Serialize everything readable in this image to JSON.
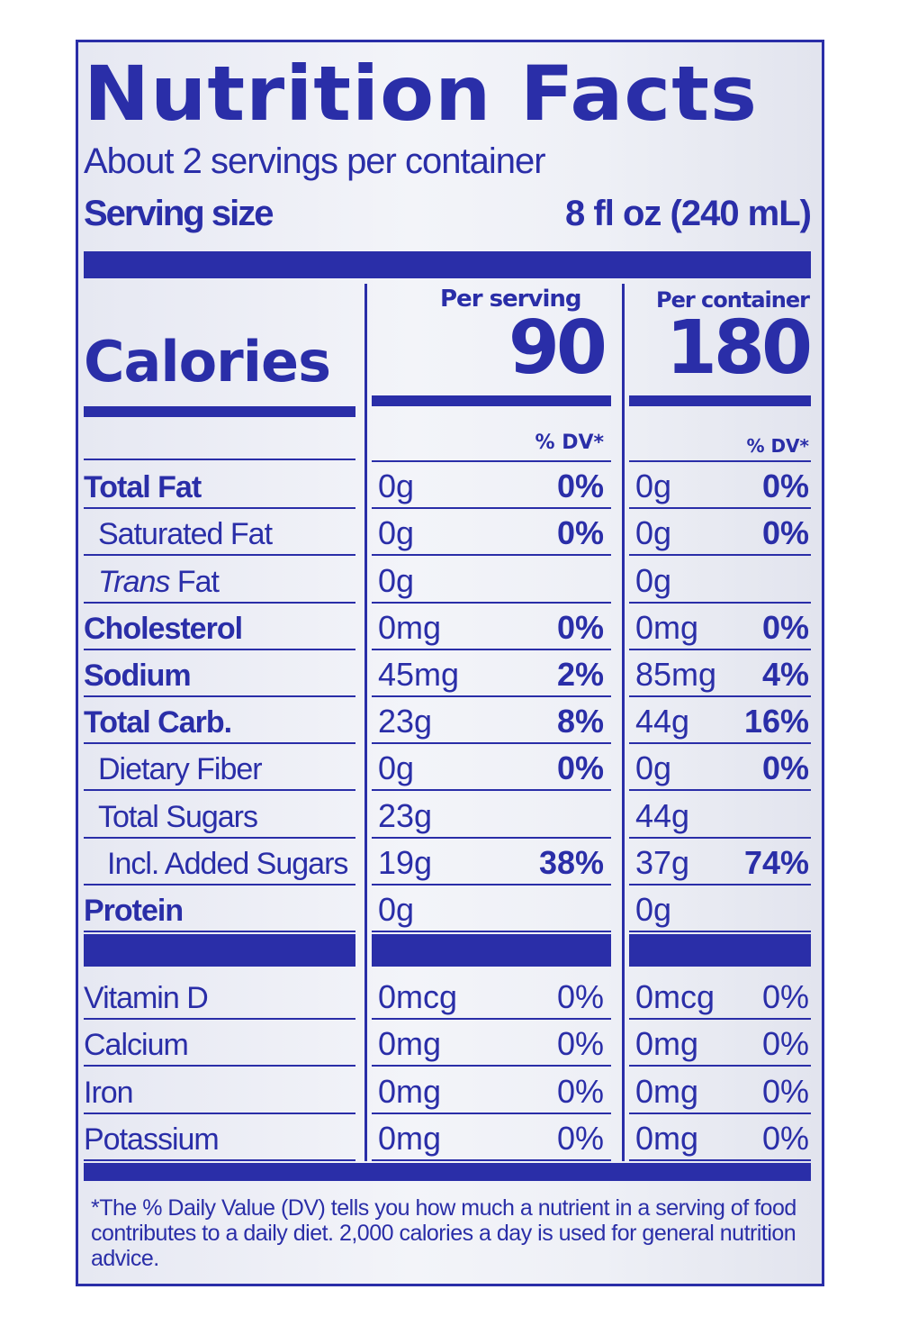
{
  "title": "Nutrition Facts",
  "servings_per_container": "About 2 servings per container",
  "serving_size_label": "Serving size",
  "serving_size_value": "8 fl oz (240 mL)",
  "calories": {
    "label": "Calories",
    "per_serving_header": "Per serving",
    "per_container_header": "Per container",
    "per_serving": "90",
    "per_container": "180",
    "dv_header_serving": "% DV*",
    "dv_header_container": "% DV*"
  },
  "rows": [
    {
      "name": "Total Fat",
      "q1": "0g",
      "d1": "0%",
      "q2": "0g",
      "d2": "0%"
    },
    {
      "name": "Saturated Fat",
      "q1": "0g",
      "d1": "0%",
      "q2": "0g",
      "d2": "0%"
    },
    {
      "name_italic": "Trans",
      "name_rest": " Fat",
      "q1": "0g",
      "d1": "",
      "q2": "0g",
      "d2": ""
    },
    {
      "name": "Cholesterol",
      "q1": "0mg",
      "d1": "0%",
      "q2": "0mg",
      "d2": "0%"
    },
    {
      "name": "Sodium",
      "q1": "45mg",
      "d1": "2%",
      "q2": "85mg",
      "d2": "4%"
    },
    {
      "name": "Total Carb.",
      "q1": "23g",
      "d1": "8%",
      "q2": "44g",
      "d2": "16%"
    },
    {
      "name": "Dietary Fiber",
      "q1": "0g",
      "d1": "0%",
      "q2": "0g",
      "d2": "0%"
    },
    {
      "name": "Total Sugars",
      "q1": "23g",
      "d1": "",
      "q2": "44g",
      "d2": ""
    },
    {
      "name": "Incl. Added Sugars",
      "q1": "19g",
      "d1": "38%",
      "q2": "37g",
      "d2": "74%"
    },
    {
      "name": "Protein",
      "q1": "0g",
      "d1": "",
      "q2": "0g",
      "d2": ""
    }
  ],
  "vitamins": [
    {
      "name": "Vitamin D",
      "q1": "0mcg",
      "d1": "0%",
      "q2": "0mcg",
      "d2": "0%"
    },
    {
      "name": "Calcium",
      "q1": "0mg",
      "d1": "0%",
      "q2": "0mg",
      "d2": "0%"
    },
    {
      "name": "Iron",
      "q1": "0mg",
      "d1": "0%",
      "q2": "0mg",
      "d2": "0%"
    },
    {
      "name": "Potassium",
      "q1": "0mg",
      "d1": "0%",
      "q2": "0mg",
      "d2": "0%"
    }
  ],
  "footnote": "*The % Daily Value (DV) tells you how much a nutrient in a serving of food contributes to a daily diet. 2,000 calories a day is used for general nutrition advice.",
  "colors": {
    "ink": "#2a2ea8",
    "background": "#eef0f6"
  }
}
